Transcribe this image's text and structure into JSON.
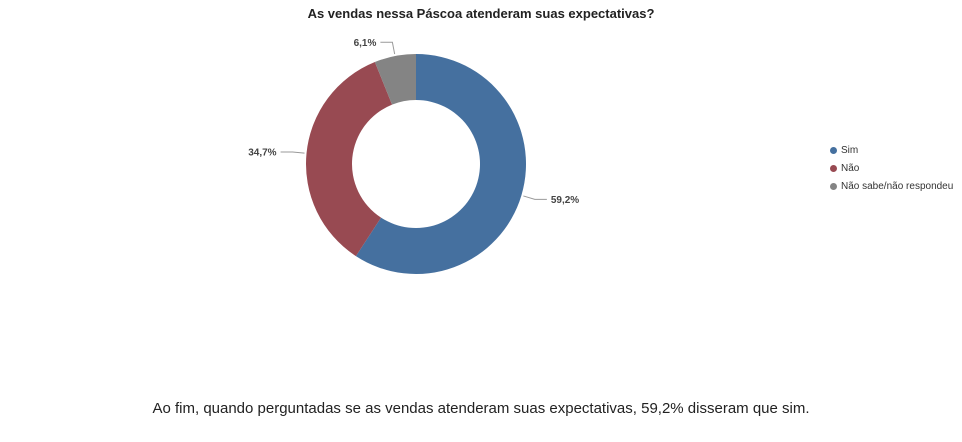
{
  "chart_data": {
    "type": "pie",
    "title": "As vendas nessa Páscoa atenderam suas expectativas?",
    "categories": [
      "Sim",
      "Não",
      "Não sabe/não respondeu"
    ],
    "values": [
      59.2,
      34.7,
      6.1
    ],
    "data_labels": [
      "59,2%",
      "34,7%",
      "6,1%"
    ],
    "colors": [
      "#45709f",
      "#984a52",
      "#848484"
    ],
    "legend_position": "right",
    "donut": true
  },
  "caption": "Ao fim, quando perguntadas se as vendas atenderam suas expectativas, 59,2% disseram que sim."
}
